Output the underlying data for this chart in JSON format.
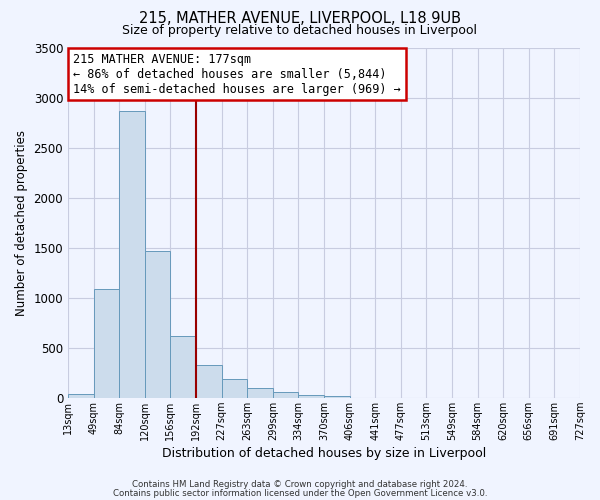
{
  "title": "215, MATHER AVENUE, LIVERPOOL, L18 9UB",
  "subtitle": "Size of property relative to detached houses in Liverpool",
  "xlabel": "Distribution of detached houses by size in Liverpool",
  "ylabel": "Number of detached properties",
  "bin_labels": [
    "13sqm",
    "49sqm",
    "84sqm",
    "120sqm",
    "156sqm",
    "192sqm",
    "227sqm",
    "263sqm",
    "299sqm",
    "334sqm",
    "370sqm",
    "406sqm",
    "441sqm",
    "477sqm",
    "513sqm",
    "549sqm",
    "584sqm",
    "620sqm",
    "656sqm",
    "691sqm",
    "727sqm"
  ],
  "bar_values": [
    40,
    1090,
    2870,
    1470,
    620,
    330,
    190,
    95,
    55,
    30,
    20,
    0,
    0,
    0,
    0,
    0,
    0,
    0,
    0,
    0
  ],
  "bar_color": "#ccdcec",
  "bar_edge_color": "#6699bb",
  "vline_color": "#990000",
  "ylim": [
    0,
    3500
  ],
  "yticks": [
    0,
    500,
    1000,
    1500,
    2000,
    2500,
    3000,
    3500
  ],
  "annotation_title": "215 MATHER AVENUE: 177sqm",
  "annotation_line1": "← 86% of detached houses are smaller (5,844)",
  "annotation_line2": "14% of semi-detached houses are larger (969) →",
  "annotation_box_color": "#ffffff",
  "annotation_box_edge": "#cc0000",
  "footer1": "Contains HM Land Registry data © Crown copyright and database right 2024.",
  "footer2": "Contains public sector information licensed under the Open Government Licence v3.0.",
  "background_color": "#f0f4ff",
  "grid_color": "#c8cce0"
}
